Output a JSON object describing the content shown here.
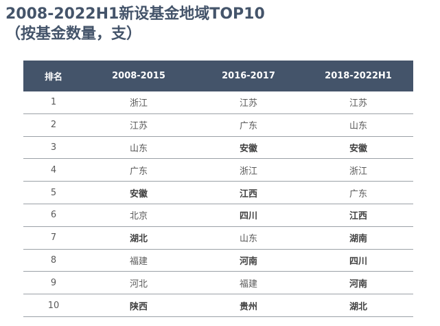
{
  "title": {
    "line1": "2008-2022H1新设基金地域TOP10",
    "line2": "（按基金数量，支）"
  },
  "table": {
    "headers": [
      "排名",
      "2008-2015",
      "2016-2017",
      "2018-2022H1"
    ],
    "rows": [
      {
        "rank": "1",
        "c1": {
          "text": "浙江",
          "bold": false
        },
        "c2": {
          "text": "江苏",
          "bold": false
        },
        "c3": {
          "text": "江苏",
          "bold": false
        }
      },
      {
        "rank": "2",
        "c1": {
          "text": "江苏",
          "bold": false
        },
        "c2": {
          "text": "广东",
          "bold": false
        },
        "c3": {
          "text": "山东",
          "bold": false
        }
      },
      {
        "rank": "3",
        "c1": {
          "text": "山东",
          "bold": false
        },
        "c2": {
          "text": "安徽",
          "bold": true
        },
        "c3": {
          "text": "安徽",
          "bold": true
        }
      },
      {
        "rank": "4",
        "c1": {
          "text": "广东",
          "bold": false
        },
        "c2": {
          "text": "浙江",
          "bold": false
        },
        "c3": {
          "text": "浙江",
          "bold": false
        }
      },
      {
        "rank": "5",
        "c1": {
          "text": "安徽",
          "bold": true
        },
        "c2": {
          "text": "江西",
          "bold": true
        },
        "c3": {
          "text": "广东",
          "bold": false
        }
      },
      {
        "rank": "6",
        "c1": {
          "text": "北京",
          "bold": false
        },
        "c2": {
          "text": "四川",
          "bold": true
        },
        "c3": {
          "text": "江西",
          "bold": true
        }
      },
      {
        "rank": "7",
        "c1": {
          "text": "湖北",
          "bold": true
        },
        "c2": {
          "text": "山东",
          "bold": false
        },
        "c3": {
          "text": "湖南",
          "bold": true
        }
      },
      {
        "rank": "8",
        "c1": {
          "text": "福建",
          "bold": false
        },
        "c2": {
          "text": "河南",
          "bold": true
        },
        "c3": {
          "text": "四川",
          "bold": true
        }
      },
      {
        "rank": "9",
        "c1": {
          "text": "河北",
          "bold": false
        },
        "c2": {
          "text": "福建",
          "bold": false
        },
        "c3": {
          "text": "河南",
          "bold": true
        }
      },
      {
        "rank": "10",
        "c1": {
          "text": "陕西",
          "bold": true
        },
        "c2": {
          "text": "贵州",
          "bold": true
        },
        "c3": {
          "text": "湖北",
          "bold": true
        }
      }
    ]
  },
  "colors": {
    "header_bg": "#44546a",
    "title": "#44546a",
    "text": "#595959"
  }
}
